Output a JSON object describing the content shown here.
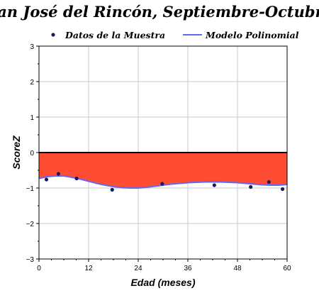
{
  "chart_data": {
    "type": "line",
    "title": "San José del Rincón, Septiembre-Octubre",
    "xlabel": "Edad (meses)",
    "ylabel": "ScoreZ",
    "xlim": [
      0,
      60
    ],
    "ylim": [
      -3,
      3
    ],
    "x_ticks": [
      "0",
      "12",
      "24",
      "36",
      "48",
      "60"
    ],
    "y_ticks": [
      "-3",
      "-2",
      "-1",
      "0",
      "1",
      "2",
      "3"
    ],
    "grid": true,
    "legend_position": "top",
    "shaded_region": {
      "from": 0,
      "to": "model",
      "color": "#ff4d33"
    },
    "series": [
      {
        "name": "Datos de la Muestra",
        "kind": "scatter",
        "color": "#1a1a66",
        "x": [
          1.8,
          4.7,
          9.1,
          17.7,
          29.8,
          42.4,
          51.2,
          55.6,
          58.9
        ],
        "y": [
          -0.76,
          -0.6,
          -0.73,
          -1.05,
          -0.88,
          -0.92,
          -0.97,
          -0.83,
          -1.03
        ]
      },
      {
        "name": "Modelo Polinomial",
        "kind": "line",
        "color": "#6666ee",
        "x": [
          0,
          2,
          4,
          6,
          8,
          10,
          12,
          14,
          16,
          18,
          20,
          22,
          24,
          26,
          28,
          30,
          32,
          34,
          36,
          38,
          40,
          42,
          44,
          46,
          48,
          50,
          52,
          54,
          56,
          58,
          60
        ],
        "y": [
          -0.73,
          -0.68,
          -0.66,
          -0.66,
          -0.7,
          -0.75,
          -0.81,
          -0.87,
          -0.92,
          -0.96,
          -0.99,
          -1.0,
          -1.0,
          -0.98,
          -0.95,
          -0.92,
          -0.89,
          -0.87,
          -0.85,
          -0.84,
          -0.83,
          -0.83,
          -0.83,
          -0.84,
          -0.85,
          -0.87,
          -0.89,
          -0.91,
          -0.92,
          -0.92,
          -0.9
        ]
      }
    ]
  }
}
